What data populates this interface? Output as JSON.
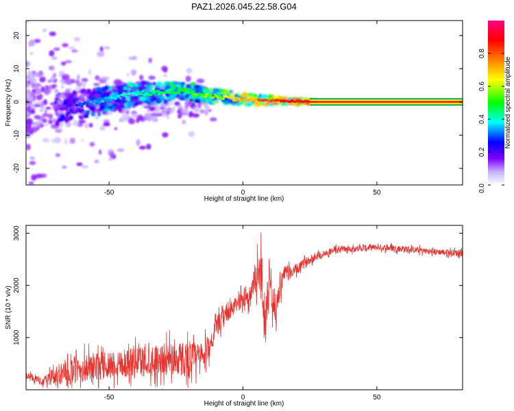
{
  "title": "PAZ1.2026.045.22.58.G04",
  "chart_data": [
    {
      "type": "heatmap",
      "name": "spectrogram",
      "xlabel": "Height of straight line (km)",
      "ylabel": "Frequency (Hz)",
      "xlim": [
        -81,
        82
      ],
      "ylim": [
        -25,
        24.5
      ],
      "xticks": [
        -50,
        0,
        50
      ],
      "yticks": [
        -20,
        -10,
        0,
        10,
        20
      ],
      "colorbar": {
        "label": "Normalized spectral amplitude",
        "range": [
          0,
          1
        ],
        "ticks": [
          "0.0",
          "0.2",
          "0.4",
          "0.6",
          "0.8"
        ],
        "colors": [
          "#ffffff",
          "#b9a0ff",
          "#8000ff",
          "#0000ff",
          "#00ffff",
          "#00ff00",
          "#ffff00",
          "#ff8000",
          "#ff0000",
          "#ff0080"
        ]
      },
      "ridge": [
        {
          "x": -62,
          "f": -1.0,
          "a": 0.3
        },
        {
          "x": -55,
          "f": 0.0,
          "a": 0.35
        },
        {
          "x": -48,
          "f": 1.0,
          "a": 0.4
        },
        {
          "x": -40,
          "f": 2.5,
          "a": 0.45
        },
        {
          "x": -30,
          "f": 2.8,
          "a": 0.5
        },
        {
          "x": -22,
          "f": 3.5,
          "a": 0.55
        },
        {
          "x": -15,
          "f": 2.0,
          "a": 0.6
        },
        {
          "x": -8,
          "f": 1.5,
          "a": 0.65
        },
        {
          "x": 0,
          "f": 0.8,
          "a": 0.75
        },
        {
          "x": 8,
          "f": 0.5,
          "a": 0.85
        },
        {
          "x": 15,
          "f": 0.3,
          "a": 0.92
        },
        {
          "x": 27,
          "f": 0.0,
          "a": 1.0
        },
        {
          "x": 82,
          "f": 0.0,
          "a": 1.0
        }
      ]
    },
    {
      "type": "line",
      "name": "snr",
      "xlabel": "Height of straight line (km)",
      "ylabel": "SNR (10 * v/v)",
      "xlim": [
        -81,
        82
      ],
      "ylim": [
        0,
        3150
      ],
      "xticks": [
        -50,
        0,
        50
      ],
      "yticks": [
        1000,
        2000,
        3000
      ],
      "color": "#e8302c",
      "envelope": {
        "x": [
          -81,
          -75,
          -70,
          -60,
          -50,
          -40,
          -30,
          -20,
          -15,
          -12,
          -10,
          -5,
          0,
          3,
          5,
          7,
          8,
          10,
          12,
          15,
          20,
          25,
          30,
          35,
          40,
          50,
          60,
          70,
          82
        ],
        "mid": [
          280,
          150,
          250,
          400,
          480,
          550,
          580,
          600,
          620,
          900,
          1200,
          1500,
          1750,
          1800,
          2200,
          2300,
          1200,
          2200,
          1500,
          2200,
          2300,
          2500,
          2600,
          2700,
          2700,
          2730,
          2700,
          2650,
          2620
        ],
        "amp": [
          120,
          120,
          350,
          500,
          500,
          550,
          550,
          650,
          500,
          400,
          350,
          300,
          300,
          400,
          600,
          800,
          700,
          800,
          600,
          300,
          200,
          150,
          120,
          110,
          110,
          110,
          110,
          110,
          110
        ]
      }
    }
  ]
}
